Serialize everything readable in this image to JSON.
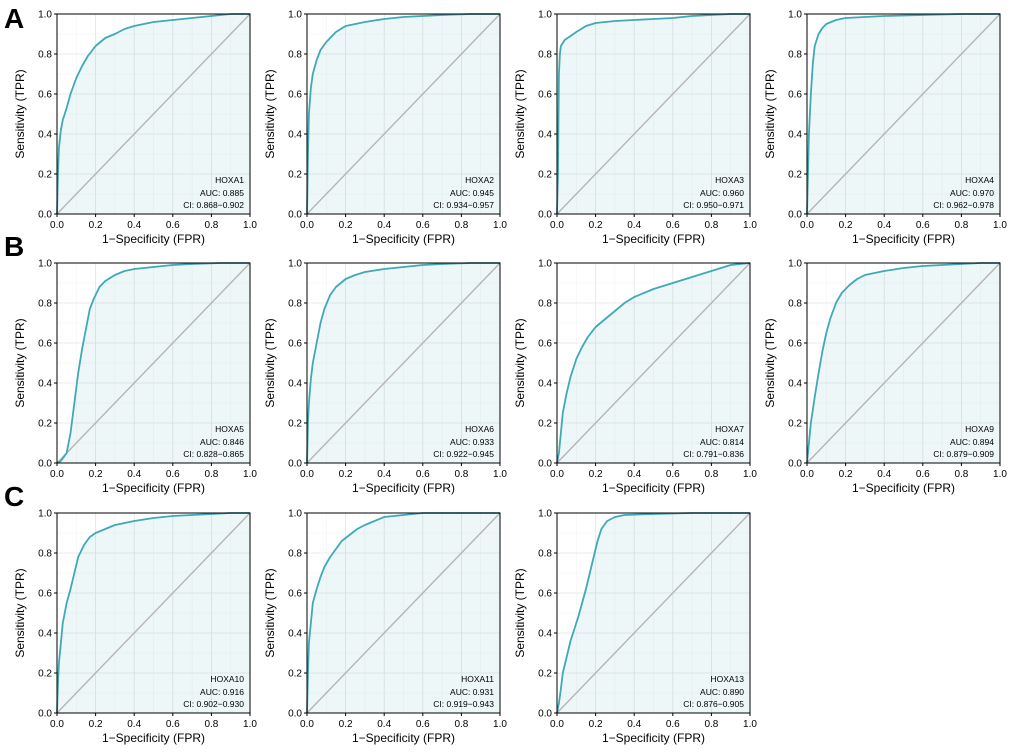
{
  "panel_letters": [
    "A",
    "B",
    "C"
  ],
  "chart_data": [
    {
      "type": "line",
      "gene": "HOXA1",
      "auc_text": "AUC: 0.885",
      "ci_text": "CI: 0.868−0.902",
      "xlabel": "1−Specificity (FPR)",
      "ylabel": "Sensitivity (TPR)",
      "xlim": [
        0,
        1
      ],
      "ylim": [
        0,
        1
      ],
      "xticks": [
        "0.0",
        "0.2",
        "0.4",
        "0.6",
        "0.8",
        "1.0"
      ],
      "yticks": [
        "0.0",
        "0.2",
        "0.4",
        "0.6",
        "0.8",
        "1.0"
      ],
      "grid": true,
      "roc": [
        [
          0,
          0
        ],
        [
          0.005,
          0.2
        ],
        [
          0.01,
          0.33
        ],
        [
          0.02,
          0.42
        ],
        [
          0.03,
          0.47
        ],
        [
          0.05,
          0.53
        ],
        [
          0.07,
          0.6
        ],
        [
          0.1,
          0.68
        ],
        [
          0.13,
          0.74
        ],
        [
          0.16,
          0.79
        ],
        [
          0.2,
          0.84
        ],
        [
          0.25,
          0.88
        ],
        [
          0.3,
          0.9
        ],
        [
          0.35,
          0.925
        ],
        [
          0.4,
          0.94
        ],
        [
          0.5,
          0.96
        ],
        [
          0.6,
          0.97
        ],
        [
          0.7,
          0.98
        ],
        [
          0.8,
          0.99
        ],
        [
          0.9,
          1
        ],
        [
          1,
          1
        ]
      ]
    },
    {
      "type": "line",
      "gene": "HOXA2",
      "auc_text": "AUC: 0.945",
      "ci_text": "CI: 0.934−0.957",
      "xlabel": "1−Specificity (FPR)",
      "ylabel": "Sensitivity (TPR)",
      "xlim": [
        0,
        1
      ],
      "ylim": [
        0,
        1
      ],
      "xticks": [
        "0.0",
        "0.2",
        "0.4",
        "0.6",
        "0.8",
        "1.0"
      ],
      "yticks": [
        "0.0",
        "0.2",
        "0.4",
        "0.6",
        "0.8",
        "1.0"
      ],
      "grid": true,
      "roc": [
        [
          0,
          0
        ],
        [
          0.005,
          0.3
        ],
        [
          0.01,
          0.5
        ],
        [
          0.02,
          0.63
        ],
        [
          0.03,
          0.7
        ],
        [
          0.05,
          0.77
        ],
        [
          0.07,
          0.82
        ],
        [
          0.1,
          0.86
        ],
        [
          0.15,
          0.91
        ],
        [
          0.2,
          0.94
        ],
        [
          0.3,
          0.96
        ],
        [
          0.4,
          0.975
        ],
        [
          0.5,
          0.985
        ],
        [
          0.6,
          0.99
        ],
        [
          0.7,
          0.995
        ],
        [
          0.85,
          1
        ],
        [
          1,
          1
        ]
      ]
    },
    {
      "type": "line",
      "gene": "HOXA3",
      "auc_text": "AUC: 0.960",
      "ci_text": "CI: 0.950−0.971",
      "xlabel": "1−Specificity (FPR)",
      "ylabel": "Sensitivity (TPR)",
      "xlim": [
        0,
        1
      ],
      "ylim": [
        0,
        1
      ],
      "xticks": [
        "0.0",
        "0.2",
        "0.4",
        "0.6",
        "0.8",
        "1.0"
      ],
      "yticks": [
        "0.0",
        "0.2",
        "0.4",
        "0.6",
        "0.8",
        "1.0"
      ],
      "grid": true,
      "roc": [
        [
          0,
          0
        ],
        [
          0.005,
          0.2
        ],
        [
          0.008,
          0.5
        ],
        [
          0.01,
          0.7
        ],
        [
          0.015,
          0.8
        ],
        [
          0.02,
          0.84
        ],
        [
          0.04,
          0.87
        ],
        [
          0.07,
          0.89
        ],
        [
          0.1,
          0.91
        ],
        [
          0.15,
          0.94
        ],
        [
          0.2,
          0.955
        ],
        [
          0.3,
          0.965
        ],
        [
          0.4,
          0.97
        ],
        [
          0.5,
          0.975
        ],
        [
          0.6,
          0.98
        ],
        [
          0.7,
          0.99
        ],
        [
          0.8,
          0.995
        ],
        [
          0.9,
          1
        ],
        [
          1,
          1
        ]
      ]
    },
    {
      "type": "line",
      "gene": "HOXA4",
      "auc_text": "AUC: 0.970",
      "ci_text": "CI: 0.962−0.978",
      "xlabel": "1−Specificity (FPR)",
      "ylabel": "Sensitivity (TPR)",
      "xlim": [
        0,
        1
      ],
      "ylim": [
        0,
        1
      ],
      "xticks": [
        "0.0",
        "0.2",
        "0.4",
        "0.6",
        "0.8",
        "1.0"
      ],
      "yticks": [
        "0.0",
        "0.2",
        "0.4",
        "0.6",
        "0.8",
        "1.0"
      ],
      "grid": true,
      "roc": [
        [
          0,
          0
        ],
        [
          0.005,
          0.2
        ],
        [
          0.01,
          0.4
        ],
        [
          0.02,
          0.6
        ],
        [
          0.03,
          0.75
        ],
        [
          0.04,
          0.84
        ],
        [
          0.06,
          0.9
        ],
        [
          0.08,
          0.93
        ],
        [
          0.1,
          0.95
        ],
        [
          0.15,
          0.97
        ],
        [
          0.2,
          0.98
        ],
        [
          0.3,
          0.985
        ],
        [
          0.4,
          0.99
        ],
        [
          0.6,
          0.995
        ],
        [
          0.8,
          1
        ],
        [
          1,
          1
        ]
      ]
    },
    {
      "type": "line",
      "gene": "HOXA5",
      "auc_text": "AUC: 0.846",
      "ci_text": "CI: 0.828−0.865",
      "xlabel": "1−Specificity (FPR)",
      "ylabel": "Sensitivity (TPR)",
      "xlim": [
        0,
        1
      ],
      "ylim": [
        0,
        1
      ],
      "xticks": [
        "0.0",
        "0.2",
        "0.4",
        "0.6",
        "0.8",
        "1.0"
      ],
      "yticks": [
        "0.0",
        "0.2",
        "0.4",
        "0.6",
        "0.8",
        "1.0"
      ],
      "grid": true,
      "roc": [
        [
          0,
          0
        ],
        [
          0.02,
          0.01
        ],
        [
          0.05,
          0.05
        ],
        [
          0.07,
          0.15
        ],
        [
          0.09,
          0.3
        ],
        [
          0.11,
          0.45
        ],
        [
          0.13,
          0.57
        ],
        [
          0.15,
          0.67
        ],
        [
          0.17,
          0.77
        ],
        [
          0.19,
          0.82
        ],
        [
          0.22,
          0.88
        ],
        [
          0.25,
          0.91
        ],
        [
          0.3,
          0.94
        ],
        [
          0.35,
          0.96
        ],
        [
          0.4,
          0.97
        ],
        [
          0.5,
          0.98
        ],
        [
          0.6,
          0.99
        ],
        [
          0.7,
          0.995
        ],
        [
          0.85,
          1
        ],
        [
          1,
          1
        ]
      ]
    },
    {
      "type": "line",
      "gene": "HOXA6",
      "auc_text": "AUC: 0.933",
      "ci_text": "CI: 0.922−0.945",
      "xlabel": "1−Specificity (FPR)",
      "ylabel": "Sensitivity (TPR)",
      "xlim": [
        0,
        1
      ],
      "ylim": [
        0,
        1
      ],
      "xticks": [
        "0.0",
        "0.2",
        "0.4",
        "0.6",
        "0.8",
        "1.0"
      ],
      "yticks": [
        "0.0",
        "0.2",
        "0.4",
        "0.6",
        "0.8",
        "1.0"
      ],
      "grid": true,
      "roc": [
        [
          0,
          0
        ],
        [
          0.005,
          0.2
        ],
        [
          0.01,
          0.3
        ],
        [
          0.02,
          0.42
        ],
        [
          0.03,
          0.5
        ],
        [
          0.05,
          0.6
        ],
        [
          0.07,
          0.7
        ],
        [
          0.09,
          0.77
        ],
        [
          0.12,
          0.84
        ],
        [
          0.15,
          0.88
        ],
        [
          0.2,
          0.92
        ],
        [
          0.25,
          0.94
        ],
        [
          0.3,
          0.955
        ],
        [
          0.4,
          0.97
        ],
        [
          0.5,
          0.98
        ],
        [
          0.6,
          0.99
        ],
        [
          0.7,
          0.995
        ],
        [
          0.85,
          1
        ],
        [
          1,
          1
        ]
      ]
    },
    {
      "type": "line",
      "gene": "HOXA7",
      "auc_text": "AUC: 0.814",
      "ci_text": "CI: 0.791−0.836",
      "xlabel": "1−Specificity (FPR)",
      "ylabel": "Sensitivity (TPR)",
      "xlim": [
        0,
        1
      ],
      "ylim": [
        0,
        1
      ],
      "xticks": [
        "0.0",
        "0.2",
        "0.4",
        "0.6",
        "0.8",
        "1.0"
      ],
      "yticks": [
        "0.0",
        "0.2",
        "0.4",
        "0.6",
        "0.8",
        "1.0"
      ],
      "grid": true,
      "roc": [
        [
          0,
          0
        ],
        [
          0.01,
          0.05
        ],
        [
          0.02,
          0.15
        ],
        [
          0.03,
          0.25
        ],
        [
          0.05,
          0.35
        ],
        [
          0.07,
          0.43
        ],
        [
          0.1,
          0.52
        ],
        [
          0.13,
          0.58
        ],
        [
          0.16,
          0.63
        ],
        [
          0.2,
          0.68
        ],
        [
          0.25,
          0.72
        ],
        [
          0.3,
          0.76
        ],
        [
          0.35,
          0.8
        ],
        [
          0.4,
          0.83
        ],
        [
          0.5,
          0.87
        ],
        [
          0.6,
          0.9
        ],
        [
          0.7,
          0.93
        ],
        [
          0.8,
          0.96
        ],
        [
          0.9,
          0.99
        ],
        [
          1,
          1
        ]
      ]
    },
    {
      "type": "line",
      "gene": "HOXA9",
      "auc_text": "AUC: 0.894",
      "ci_text": "CI: 0.879−0.909",
      "xlabel": "1−Specificity (FPR)",
      "ylabel": "Sensitivity (TPR)",
      "xlim": [
        0,
        1
      ],
      "ylim": [
        0,
        1
      ],
      "xticks": [
        "0.0",
        "0.2",
        "0.4",
        "0.6",
        "0.8",
        "1.0"
      ],
      "yticks": [
        "0.0",
        "0.2",
        "0.4",
        "0.6",
        "0.8",
        "1.0"
      ],
      "grid": true,
      "roc": [
        [
          0,
          0
        ],
        [
          0.005,
          0.05
        ],
        [
          0.01,
          0.1
        ],
        [
          0.02,
          0.2
        ],
        [
          0.04,
          0.33
        ],
        [
          0.06,
          0.45
        ],
        [
          0.08,
          0.56
        ],
        [
          0.1,
          0.65
        ],
        [
          0.12,
          0.72
        ],
        [
          0.15,
          0.8
        ],
        [
          0.18,
          0.85
        ],
        [
          0.22,
          0.89
        ],
        [
          0.26,
          0.92
        ],
        [
          0.3,
          0.94
        ],
        [
          0.4,
          0.96
        ],
        [
          0.5,
          0.975
        ],
        [
          0.6,
          0.985
        ],
        [
          0.7,
          0.99
        ],
        [
          0.8,
          0.995
        ],
        [
          0.9,
          1
        ],
        [
          1,
          1
        ]
      ]
    },
    {
      "type": "line",
      "gene": "HOXA10",
      "auc_text": "AUC: 0.916",
      "ci_text": "CI: 0.902−0.930",
      "xlabel": "1−Specificity (FPR)",
      "ylabel": "Sensitivity (TPR)",
      "xlim": [
        0,
        1
      ],
      "ylim": [
        0,
        1
      ],
      "xticks": [
        "0.0",
        "0.2",
        "0.4",
        "0.6",
        "0.8",
        "1.0"
      ],
      "yticks": [
        "0.0",
        "0.2",
        "0.4",
        "0.6",
        "0.8",
        "1.0"
      ],
      "grid": true,
      "roc": [
        [
          0,
          0
        ],
        [
          0.005,
          0.15
        ],
        [
          0.01,
          0.25
        ],
        [
          0.02,
          0.35
        ],
        [
          0.03,
          0.45
        ],
        [
          0.05,
          0.55
        ],
        [
          0.07,
          0.62
        ],
        [
          0.09,
          0.7
        ],
        [
          0.11,
          0.78
        ],
        [
          0.14,
          0.84
        ],
        [
          0.17,
          0.88
        ],
        [
          0.2,
          0.9
        ],
        [
          0.25,
          0.92
        ],
        [
          0.3,
          0.94
        ],
        [
          0.4,
          0.96
        ],
        [
          0.5,
          0.975
        ],
        [
          0.6,
          0.985
        ],
        [
          0.7,
          0.99
        ],
        [
          0.8,
          0.995
        ],
        [
          0.9,
          1
        ],
        [
          1,
          1
        ]
      ]
    },
    {
      "type": "line",
      "gene": "HOXA11",
      "auc_text": "AUC: 0.931",
      "ci_text": "CI: 0.919−0.943",
      "xlabel": "1−Specificity (FPR)",
      "ylabel": "Sensitivity (TPR)",
      "xlim": [
        0,
        1
      ],
      "ylim": [
        0,
        1
      ],
      "xticks": [
        "0.0",
        "0.2",
        "0.4",
        "0.6",
        "0.8",
        "1.0"
      ],
      "yticks": [
        "0.0",
        "0.2",
        "0.4",
        "0.6",
        "0.8",
        "1.0"
      ],
      "grid": true,
      "roc": [
        [
          0,
          0
        ],
        [
          0.005,
          0.2
        ],
        [
          0.01,
          0.35
        ],
        [
          0.02,
          0.45
        ],
        [
          0.03,
          0.55
        ],
        [
          0.05,
          0.62
        ],
        [
          0.07,
          0.68
        ],
        [
          0.09,
          0.73
        ],
        [
          0.12,
          0.78
        ],
        [
          0.15,
          0.82
        ],
        [
          0.18,
          0.86
        ],
        [
          0.22,
          0.89
        ],
        [
          0.26,
          0.92
        ],
        [
          0.3,
          0.94
        ],
        [
          0.35,
          0.96
        ],
        [
          0.4,
          0.98
        ],
        [
          0.5,
          0.99
        ],
        [
          0.55,
          0.995
        ],
        [
          0.6,
          1
        ],
        [
          1,
          1
        ]
      ]
    },
    {
      "type": "line",
      "gene": "HOXA13",
      "auc_text": "AUC: 0.890",
      "ci_text": "CI: 0.876−0.905",
      "xlabel": "1−Specificity (FPR)",
      "ylabel": "Sensitivity (TPR)",
      "xlim": [
        0,
        1
      ],
      "ylim": [
        0,
        1
      ],
      "xticks": [
        "0.0",
        "0.2",
        "0.4",
        "0.6",
        "0.8",
        "1.0"
      ],
      "yticks": [
        "0.0",
        "0.2",
        "0.4",
        "0.6",
        "0.8",
        "1.0"
      ],
      "grid": true,
      "roc": [
        [
          0,
          0
        ],
        [
          0.01,
          0.05
        ],
        [
          0.02,
          0.12
        ],
        [
          0.03,
          0.2
        ],
        [
          0.05,
          0.28
        ],
        [
          0.07,
          0.36
        ],
        [
          0.09,
          0.42
        ],
        [
          0.11,
          0.48
        ],
        [
          0.13,
          0.55
        ],
        [
          0.15,
          0.62
        ],
        [
          0.17,
          0.7
        ],
        [
          0.19,
          0.78
        ],
        [
          0.21,
          0.86
        ],
        [
          0.23,
          0.92
        ],
        [
          0.26,
          0.96
        ],
        [
          0.3,
          0.98
        ],
        [
          0.35,
          0.99
        ],
        [
          0.5,
          0.995
        ],
        [
          0.7,
          1
        ],
        [
          1,
          1
        ]
      ]
    }
  ]
}
